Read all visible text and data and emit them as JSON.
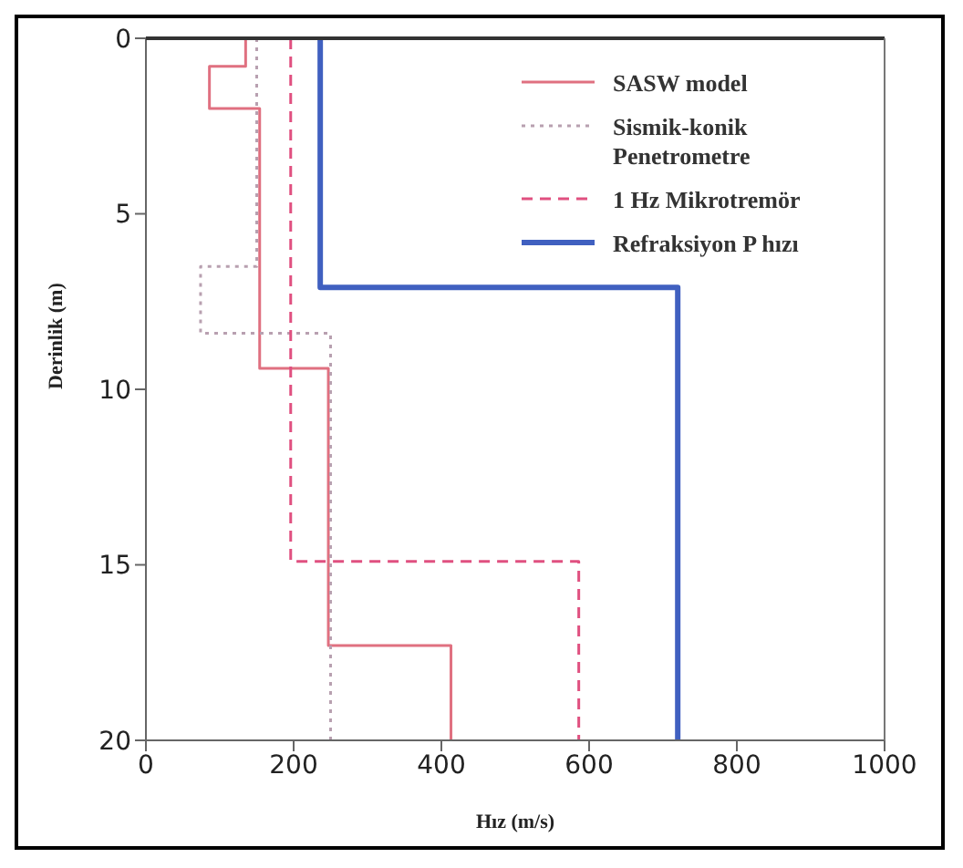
{
  "chart_data": {
    "type": "line",
    "xlabel": "Hız (m/s)",
    "ylabel": "Derinlik (m)",
    "xlim": [
      0,
      1000
    ],
    "xticks": [
      0,
      200,
      400,
      600,
      800,
      1000
    ],
    "ylim": [
      20,
      0
    ],
    "yticks": [
      0,
      5,
      10,
      15,
      20
    ],
    "grid": false,
    "legend": "top right",
    "marker": "none",
    "series": [
      {
        "name": "SASW model",
        "color": "#e07080",
        "line_style": "solid",
        "x": [
          135,
          135,
          86,
          86,
          154,
          154,
          247,
          247,
          413,
          413
        ],
        "values": [
          0,
          0.8,
          0.8,
          2,
          2,
          9.4,
          9.4,
          17.3,
          17.3,
          20
        ]
      },
      {
        "name": "Sismik-konik Penetrometre",
        "color": "#b8a0b0",
        "line_style": "dotted",
        "x": [
          150,
          150,
          74,
          74,
          250,
          250
        ],
        "values": [
          0,
          6.5,
          6.5,
          8.4,
          8.4,
          20
        ]
      },
      {
        "name": "1 Hz Mikrotremör",
        "color": "#e05080",
        "line_style": "dashed",
        "x": [
          196,
          196,
          586,
          586
        ],
        "values": [
          0,
          14.9,
          14.9,
          20
        ]
      },
      {
        "name": "Refraksiyon P hızı",
        "color": "#4060c0",
        "line_style": "solid",
        "x": [
          236,
          236,
          720,
          720
        ],
        "values": [
          0,
          7.1,
          7.1,
          20
        ]
      }
    ]
  }
}
